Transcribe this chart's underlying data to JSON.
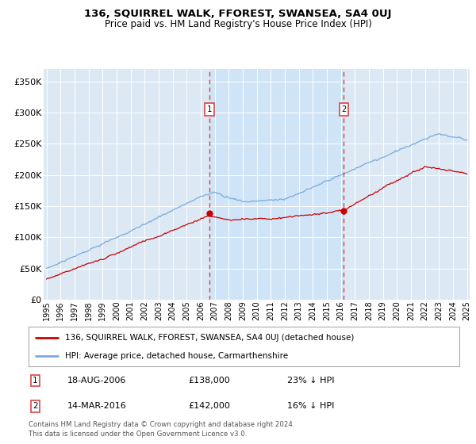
{
  "title": "136, SQUIRREL WALK, FFOREST, SWANSEA, SA4 0UJ",
  "subtitle": "Price paid vs. HM Land Registry's House Price Index (HPI)",
  "yticks": [
    0,
    50000,
    100000,
    150000,
    200000,
    250000,
    300000,
    350000
  ],
  "ytick_labels": [
    "£0",
    "£50K",
    "£100K",
    "£150K",
    "£200K",
    "£250K",
    "£300K",
    "£350K"
  ],
  "background_color": "#ffffff",
  "plot_bg_color": "#dce9f5",
  "grid_color": "#ffffff",
  "hpi_color": "#7aaadd",
  "price_color": "#cc0000",
  "sale1_date": "18-AUG-2006",
  "sale1_price": 138000,
  "sale1_label": "23% ↓ HPI",
  "sale2_date": "14-MAR-2016",
  "sale2_price": 142000,
  "sale2_label": "16% ↓ HPI",
  "legend_property": "136, SQUIRREL WALK, FFOREST, SWANSEA, SA4 0UJ (detached house)",
  "legend_hpi": "HPI: Average price, detached house, Carmarthenshire",
  "footer": "Contains HM Land Registry data © Crown copyright and database right 2024.\nThis data is licensed under the Open Government Licence v3.0.",
  "xstart_year": 1995,
  "xend_year": 2025,
  "sale1_x": 2006.63,
  "sale2_x": 2016.21,
  "span_color": "#d0e4f7",
  "vline_color": "#dd4444"
}
